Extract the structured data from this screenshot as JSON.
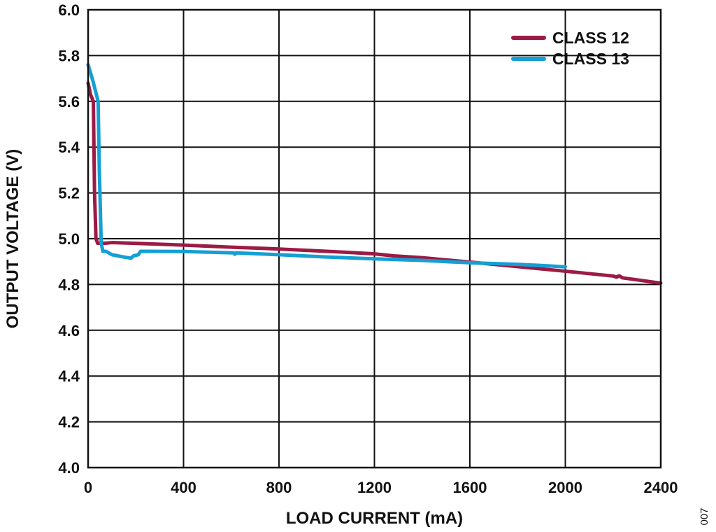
{
  "chart_data": {
    "type": "line",
    "xlabel": "LOAD CURRENT (mA)",
    "ylabel": "OUTPUT VOLTAGE (V)",
    "xlim": [
      0,
      2400
    ],
    "ylim": [
      4.0,
      6.0
    ],
    "x_ticks": [
      0,
      400,
      800,
      1200,
      1600,
      2000,
      2400
    ],
    "x_tick_labels": [
      "0",
      "400",
      "800",
      "1200",
      "1600",
      "2000",
      "2400"
    ],
    "y_ticks": [
      4.0,
      4.2,
      4.4,
      4.6,
      4.8,
      5.0,
      5.2,
      5.4,
      5.6,
      5.8,
      6.0
    ],
    "y_tick_labels": [
      "4.0",
      "4.2",
      "4.4",
      "4.6",
      "4.8",
      "5.0",
      "5.2",
      "5.4",
      "5.6",
      "5.8",
      "6.0"
    ],
    "grid": true,
    "legend_position": "top-right",
    "figure_id": "007",
    "series": [
      {
        "name": "CLASS 12",
        "color": "#9b1b45",
        "points": [
          [
            0,
            5.68
          ],
          [
            10,
            5.63
          ],
          [
            22,
            5.6
          ],
          [
            27,
            5.2
          ],
          [
            33,
            5.0
          ],
          [
            40,
            4.98
          ],
          [
            70,
            4.98
          ],
          [
            100,
            4.983
          ],
          [
            250,
            4.978
          ],
          [
            400,
            4.972
          ],
          [
            600,
            4.963
          ],
          [
            800,
            4.955
          ],
          [
            1000,
            4.945
          ],
          [
            1200,
            4.934
          ],
          [
            1280,
            4.925
          ],
          [
            1400,
            4.917
          ],
          [
            1600,
            4.898
          ],
          [
            1800,
            4.878
          ],
          [
            2000,
            4.858
          ],
          [
            2200,
            4.837
          ],
          [
            2215,
            4.832
          ],
          [
            2225,
            4.838
          ],
          [
            2240,
            4.829
          ],
          [
            2400,
            4.806
          ]
        ]
      },
      {
        "name": "CLASS 13",
        "color": "#159fd3",
        "points": [
          [
            0,
            5.76
          ],
          [
            20,
            5.69
          ],
          [
            42,
            5.6
          ],
          [
            47,
            5.3
          ],
          [
            55,
            4.98
          ],
          [
            62,
            4.945
          ],
          [
            75,
            4.945
          ],
          [
            100,
            4.93
          ],
          [
            150,
            4.92
          ],
          [
            180,
            4.915
          ],
          [
            190,
            4.925
          ],
          [
            210,
            4.93
          ],
          [
            220,
            4.945
          ],
          [
            400,
            4.944
          ],
          [
            610,
            4.938
          ],
          [
            615,
            4.932
          ],
          [
            620,
            4.938
          ],
          [
            800,
            4.93
          ],
          [
            1000,
            4.92
          ],
          [
            1200,
            4.912
          ],
          [
            1400,
            4.905
          ],
          [
            1600,
            4.895
          ],
          [
            1800,
            4.888
          ],
          [
            1900,
            4.883
          ],
          [
            2000,
            4.877
          ]
        ]
      }
    ]
  }
}
